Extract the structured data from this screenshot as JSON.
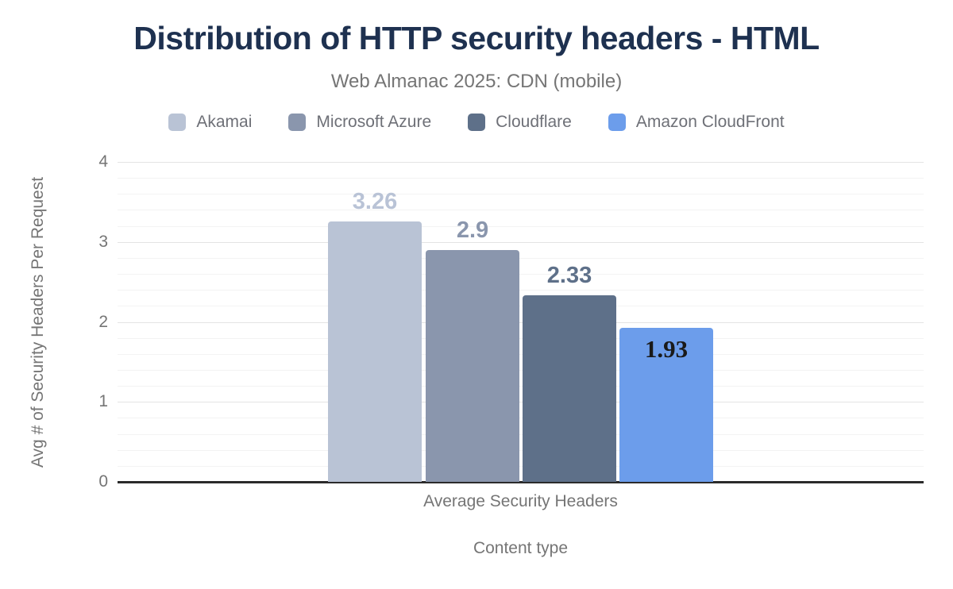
{
  "chart_data": {
    "type": "bar",
    "title": "Distribution of HTTP security headers - HTML",
    "subtitle": "Web Almanac 2025: CDN (mobile)",
    "categories": [
      "Average Security Headers"
    ],
    "xlabel": "Content type",
    "ylabel": "Avg # of Security Headers Per Request",
    "ylim": [
      0,
      4
    ],
    "yticks": [
      0,
      1,
      2,
      3,
      4
    ],
    "minor_grid_step": 0.2,
    "grid": true,
    "legend_position": "top",
    "series": [
      {
        "name": "Akamai",
        "value": 3.26,
        "label": "3.26",
        "color": "#b9c3d5",
        "label_color": "#b9c3d6",
        "label_position": "above",
        "label_font": "sans"
      },
      {
        "name": "Microsoft Azure",
        "value": 2.9,
        "label": "2.9",
        "color": "#8a96ad",
        "label_color": "#8a96ad",
        "label_position": "above",
        "label_font": "sans"
      },
      {
        "name": "Cloudflare",
        "value": 2.33,
        "label": "2.33",
        "color": "#5e7089",
        "label_color": "#5e7089",
        "label_position": "above",
        "label_font": "sans"
      },
      {
        "name": "Amazon CloudFront",
        "value": 1.93,
        "label": "1.93",
        "color": "#6c9deb",
        "label_color": "#1a1a1a",
        "label_position": "inside",
        "label_font": "serif"
      }
    ]
  },
  "colors": {
    "title": "#1e3150",
    "muted_text": "#757575",
    "legend_text": "#6e7077",
    "axis_line": "#2b2b2b",
    "grid_major": "#e4e4e4",
    "grid_minor": "#f3f3f3",
    "background": "#ffffff"
  }
}
